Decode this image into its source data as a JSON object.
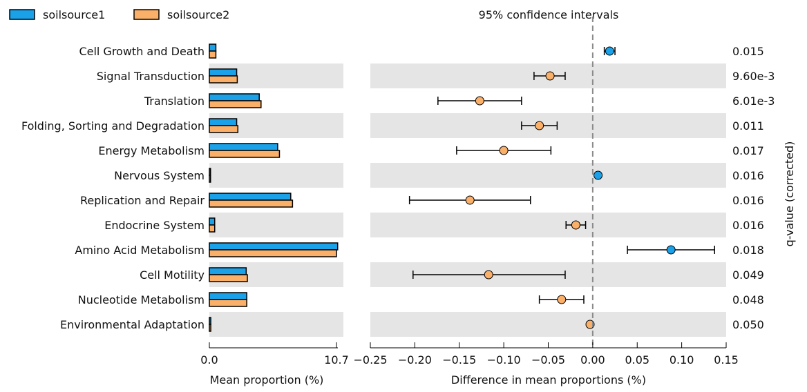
{
  "legend": [
    {
      "name": "soilsource1",
      "color": "#1ba1e8"
    },
    {
      "name": "soilsource2",
      "color": "#fbb06a"
    }
  ],
  "ci_title": "95% confidence intervals",
  "left_xlabel": "Mean proportion (%)",
  "right_xlabel": "Difference in mean proportions (%)",
  "right_ylabel": "q-value (corrected)",
  "chart_data": [
    {
      "type": "bar",
      "orientation": "horizontal",
      "xlabel": "Mean proportion (%)",
      "xlim": [
        0.0,
        10.7
      ],
      "xtick_labels": [
        "0.0",
        "10.7"
      ],
      "categories": [
        "Cell Growth and Death",
        "Signal Transduction",
        "Translation",
        "Folding, Sorting and Degradation",
        "Energy Metabolism",
        "Nervous System",
        "Replication and Repair",
        "Endocrine System",
        "Amino Acid Metabolism",
        "Cell Motility",
        "Nucleotide Metabolism",
        "Environmental Adaptation"
      ],
      "series": [
        {
          "name": "soilsource1",
          "color": "#1ba1e8",
          "values": [
            0.55,
            2.3,
            4.2,
            2.3,
            5.75,
            0.1,
            6.85,
            0.45,
            10.8,
            3.1,
            3.15,
            0.12
          ]
        },
        {
          "name": "soilsource2",
          "color": "#fbb06a",
          "values": [
            0.55,
            2.35,
            4.35,
            2.4,
            5.9,
            0.1,
            7.0,
            0.45,
            10.7,
            3.2,
            3.15,
            0.12
          ]
        }
      ]
    },
    {
      "type": "scatter",
      "title": "95% confidence intervals",
      "xlabel": "Difference in mean proportions (%)",
      "xlim": [
        -0.25,
        0.15
      ],
      "xticks": [
        -0.25,
        -0.2,
        -0.15,
        -0.1,
        -0.05,
        0.0,
        0.05,
        0.1,
        0.15
      ],
      "xtick_labels": [
        "−0.25",
        "−0.20",
        "−0.15",
        "−0.10",
        "−0.05",
        "0.00",
        "0.05",
        "0.10",
        "0.15"
      ],
      "categories": [
        "Cell Growth and Death",
        "Signal Transduction",
        "Translation",
        "Folding, Sorting and Degradation",
        "Energy Metabolism",
        "Nervous System",
        "Replication and Repair",
        "Endocrine System",
        "Amino Acid Metabolism",
        "Cell Motility",
        "Nucleotide Metabolism",
        "Environmental Adaptation"
      ],
      "points": [
        {
          "diff": 0.019,
          "low": 0.013,
          "high": 0.025,
          "group": "soilsource1",
          "qvalue": "0.015"
        },
        {
          "diff": -0.048,
          "low": -0.066,
          "high": -0.031,
          "group": "soilsource2",
          "qvalue": "9.60e-3"
        },
        {
          "diff": -0.127,
          "low": -0.174,
          "high": -0.08,
          "group": "soilsource2",
          "qvalue": "6.01e-3"
        },
        {
          "diff": -0.06,
          "low": -0.08,
          "high": -0.04,
          "group": "soilsource2",
          "qvalue": "0.011"
        },
        {
          "diff": -0.1,
          "low": -0.153,
          "high": -0.047,
          "group": "soilsource2",
          "qvalue": "0.017"
        },
        {
          "diff": 0.006,
          "low": 0.004,
          "high": 0.008,
          "group": "soilsource1",
          "qvalue": "0.016"
        },
        {
          "diff": -0.138,
          "low": -0.206,
          "high": -0.07,
          "group": "soilsource2",
          "qvalue": "0.016"
        },
        {
          "diff": -0.019,
          "low": -0.03,
          "high": -0.008,
          "group": "soilsource2",
          "qvalue": "0.016"
        },
        {
          "diff": 0.088,
          "low": 0.039,
          "high": 0.137,
          "group": "soilsource1",
          "qvalue": "0.018"
        },
        {
          "diff": -0.117,
          "low": -0.202,
          "high": -0.031,
          "group": "soilsource2",
          "qvalue": "0.049"
        },
        {
          "diff": -0.035,
          "low": -0.06,
          "high": -0.01,
          "group": "soilsource2",
          "qvalue": "0.048"
        },
        {
          "diff": -0.003,
          "low": -0.004,
          "high": -0.002,
          "group": "soilsource2",
          "qvalue": "0.050"
        }
      ]
    }
  ]
}
